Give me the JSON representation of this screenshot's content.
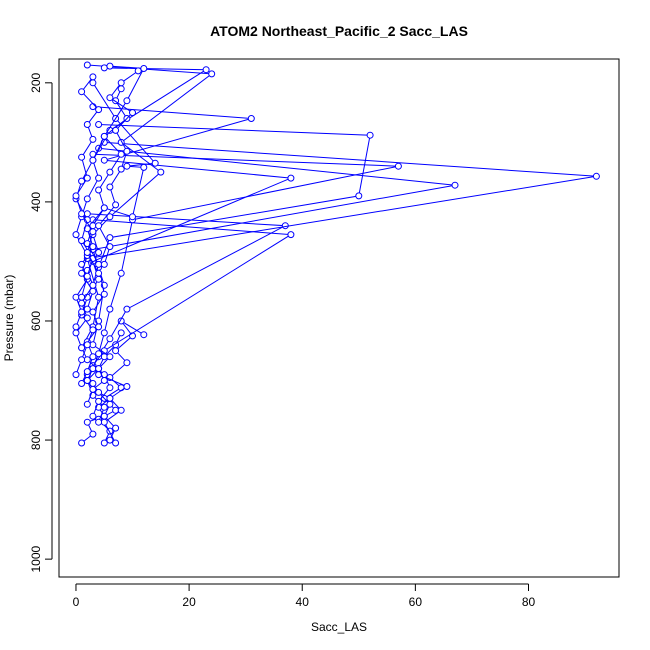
{
  "chart_data": {
    "type": "line",
    "title": "ATOM2 Northeast_Pacific_2 Sacc_LAS",
    "xlabel": "Sacc_LAS",
    "ylabel": "Pressure (mbar)",
    "xlim": [
      -3,
      96
    ],
    "ylim": [
      1030,
      160
    ],
    "y_inverted": true,
    "x_ticks": [
      0,
      20,
      40,
      60,
      80
    ],
    "y_ticks": [
      200,
      400,
      600,
      800,
      1000
    ],
    "grid": false,
    "legend": "none",
    "colors": {
      "series": "#0000ff",
      "axis": "#000000"
    },
    "series": [
      {
        "x": [
          1,
          3,
          2,
          5,
          4,
          6,
          3,
          2,
          4,
          5,
          7,
          8
        ],
        "y": [
          805,
          790,
          770,
          760,
          745,
          730,
          715,
          700,
          680,
          660,
          640,
          620
        ]
      },
      {
        "x": [
          5,
          6,
          4,
          7,
          5,
          8,
          6,
          9,
          7,
          10,
          8,
          12
        ],
        "y": [
          805,
          785,
          765,
          750,
          730,
          712,
          695,
          670,
          650,
          625,
          600,
          623
        ]
      },
      {
        "x": [
          6,
          7,
          5,
          6,
          4,
          3,
          2,
          4,
          6,
          9,
          37,
          2
        ],
        "y": [
          800,
          780,
          760,
          740,
          720,
          705,
          690,
          660,
          630,
          580,
          440,
          420
        ]
      },
      {
        "x": [
          7,
          5,
          8,
          6,
          9,
          4,
          3,
          5,
          38,
          3
        ],
        "y": [
          805,
          770,
          750,
          730,
          710,
          690,
          675,
          650,
          455,
          430
        ]
      },
      {
        "x": [
          4,
          5,
          3,
          2,
          3,
          4,
          5,
          6,
          8,
          10,
          57,
          3
        ],
        "y": [
          770,
          745,
          725,
          700,
          680,
          655,
          620,
          580,
          520,
          430,
          340,
          320
        ]
      },
      {
        "x": [
          3,
          4,
          6,
          5,
          2,
          1,
          3,
          4,
          2,
          92,
          5
        ],
        "y": [
          760,
          735,
          712,
          690,
          665,
          645,
          610,
          560,
          495,
          357,
          300
        ]
      },
      {
        "x": [
          2,
          3,
          5,
          4,
          6,
          3,
          4,
          5,
          3,
          67,
          4
        ],
        "y": [
          740,
          715,
          700,
          680,
          660,
          640,
          600,
          540,
          480,
          372,
          310
        ]
      },
      {
        "x": [
          1,
          2,
          3,
          2,
          4,
          3,
          5,
          4,
          6,
          50,
          52,
          4
        ],
        "y": [
          705,
          685,
          660,
          635,
          610,
          585,
          555,
          510,
          460,
          390,
          288,
          270
        ]
      },
      {
        "x": [
          0,
          1,
          2,
          3,
          1,
          2,
          4,
          3,
          38,
          5,
          31,
          3
        ],
        "y": [
          690,
          665,
          640,
          615,
          590,
          560,
          530,
          500,
          360,
          330,
          260,
          240
        ]
      },
      {
        "x": [
          1,
          0,
          2,
          1,
          3,
          2,
          4,
          3,
          6,
          15,
          8,
          24,
          2
        ],
        "y": [
          645,
          620,
          595,
          570,
          540,
          515,
          485,
          455,
          425,
          350,
          300,
          185,
          170
        ]
      },
      {
        "x": [
          0,
          1,
          0,
          2,
          1,
          3,
          2,
          5,
          10,
          12,
          9,
          14,
          7,
          3
        ],
        "y": [
          610,
          585,
          560,
          530,
          505,
          475,
          445,
          410,
          425,
          342,
          340,
          335,
          260,
          200
        ]
      },
      {
        "x": [
          2,
          3,
          1,
          2,
          0,
          1,
          2,
          4,
          3,
          6,
          23,
          5
        ],
        "y": [
          580,
          550,
          520,
          490,
          455,
          425,
          395,
          360,
          330,
          280,
          178,
          175
        ]
      },
      {
        "x": [
          1,
          2,
          3,
          1,
          2,
          0,
          1,
          3,
          5,
          9,
          12,
          6
        ],
        "y": [
          560,
          525,
          495,
          465,
          430,
          395,
          365,
          330,
          290,
          230,
          176,
          172
        ]
      },
      {
        "x": [
          3,
          4,
          2,
          3,
          5,
          4,
          6,
          8,
          5,
          9,
          7,
          8
        ],
        "y": [
          540,
          505,
          470,
          440,
          410,
          380,
          350,
          320,
          290,
          260,
          230,
          210
        ]
      },
      {
        "x": [
          4,
          2,
          3,
          1,
          0,
          2,
          1,
          3,
          2,
          4,
          1,
          3
        ],
        "y": [
          520,
          485,
          450,
          420,
          390,
          360,
          325,
          295,
          270,
          245,
          215,
          190
        ]
      },
      {
        "x": [
          5,
          6,
          4,
          7,
          6,
          8,
          9,
          7,
          10,
          6,
          8,
          11
        ],
        "y": [
          505,
          475,
          440,
          405,
          375,
          345,
          315,
          280,
          250,
          225,
          200,
          180
        ]
      }
    ]
  }
}
